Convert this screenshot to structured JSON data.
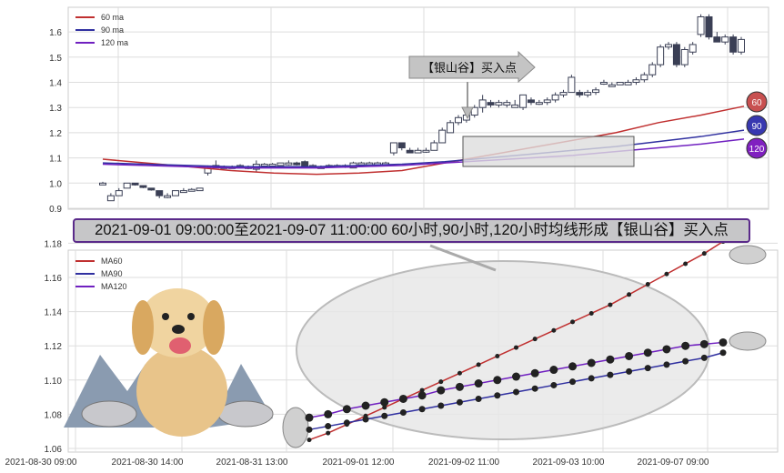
{
  "banner": "2021-09-01 09:00:00至2021-09-07 11:00:00 60小时,90小时,120小时均线形成【银山谷】买入点",
  "colors": {
    "ma60": "#c03030",
    "ma90": "#3030a0",
    "ma120": "#7020c0"
  },
  "chart_data": [
    {
      "type": "candlestick",
      "title": "",
      "ylim": [
        0.9,
        1.7
      ],
      "yticks": [
        "0.9",
        "1.0",
        "1.1",
        "1.2",
        "1.3",
        "1.4",
        "1.5",
        "1.6"
      ],
      "legend": [
        "60 ma",
        "90 ma",
        "120 ma"
      ],
      "legend_position": "top-left",
      "annotation": "【银山谷】买入点",
      "badges": [
        "60",
        "90",
        "120"
      ],
      "candles": [
        [
          1.0,
          1.0,
          1.005,
          0.995
        ],
        [
          0.93,
          0.95,
          0.96,
          0.93
        ],
        [
          0.95,
          0.97,
          0.98,
          0.95
        ],
        [
          0.98,
          1.0,
          1.0,
          0.98
        ],
        [
          1.0,
          0.995,
          1.0,
          0.99
        ],
        [
          0.99,
          0.985,
          0.99,
          0.98
        ],
        [
          0.98,
          0.975,
          0.98,
          0.97
        ],
        [
          0.97,
          0.95,
          0.97,
          0.94
        ],
        [
          0.95,
          0.95,
          0.96,
          0.94
        ],
        [
          0.95,
          0.97,
          0.97,
          0.95
        ],
        [
          0.97,
          0.97,
          0.98,
          0.97
        ],
        [
          0.97,
          0.975,
          0.98,
          0.97
        ],
        [
          0.97,
          0.98,
          0.98,
          0.97
        ],
        [
          1.04,
          1.06,
          1.07,
          1.03
        ],
        [
          1.06,
          1.07,
          1.09,
          1.06
        ],
        [
          1.065,
          1.06,
          1.07,
          1.06
        ],
        [
          1.06,
          1.065,
          1.07,
          1.06
        ],
        [
          1.06,
          1.07,
          1.075,
          1.06
        ],
        [
          1.06,
          1.065,
          1.07,
          1.055
        ],
        [
          1.055,
          1.075,
          1.09,
          1.045
        ],
        [
          1.07,
          1.075,
          1.08,
          1.07
        ],
        [
          1.07,
          1.075,
          1.08,
          1.07
        ],
        [
          1.07,
          1.08,
          1.08,
          1.07
        ],
        [
          1.075,
          1.08,
          1.09,
          1.07
        ],
        [
          1.08,
          1.075,
          1.085,
          1.07
        ],
        [
          1.085,
          1.065,
          1.09,
          1.06
        ],
        [
          1.065,
          1.07,
          1.075,
          1.06
        ],
        [
          1.06,
          1.065,
          1.07,
          1.06
        ],
        [
          1.065,
          1.07,
          1.075,
          1.06
        ],
        [
          1.07,
          1.07,
          1.075,
          1.065
        ],
        [
          1.065,
          1.07,
          1.075,
          1.06
        ],
        [
          1.06,
          1.08,
          1.085,
          1.06
        ],
        [
          1.075,
          1.08,
          1.085,
          1.07
        ],
        [
          1.08,
          1.08,
          1.085,
          1.075
        ],
        [
          1.075,
          1.08,
          1.085,
          1.075
        ],
        [
          1.08,
          1.08,
          1.085,
          1.075
        ],
        [
          1.12,
          1.16,
          1.16,
          1.11
        ],
        [
          1.16,
          1.14,
          1.16,
          1.13
        ],
        [
          1.13,
          1.12,
          1.14,
          1.12
        ],
        [
          1.12,
          1.13,
          1.14,
          1.12
        ],
        [
          1.13,
          1.13,
          1.14,
          1.12
        ],
        [
          1.13,
          1.16,
          1.17,
          1.13
        ],
        [
          1.16,
          1.21,
          1.22,
          1.16
        ],
        [
          1.2,
          1.24,
          1.25,
          1.2
        ],
        [
          1.24,
          1.26,
          1.27,
          1.23
        ],
        [
          1.25,
          1.27,
          1.28,
          1.24
        ],
        [
          1.27,
          1.3,
          1.31,
          1.26
        ],
        [
          1.3,
          1.33,
          1.35,
          1.28
        ],
        [
          1.32,
          1.31,
          1.33,
          1.3
        ],
        [
          1.31,
          1.32,
          1.33,
          1.3
        ],
        [
          1.31,
          1.32,
          1.33,
          1.3
        ],
        [
          1.3,
          1.31,
          1.33,
          1.3
        ],
        [
          1.3,
          1.35,
          1.35,
          1.29
        ],
        [
          1.33,
          1.32,
          1.34,
          1.31
        ],
        [
          1.32,
          1.32,
          1.33,
          1.31
        ],
        [
          1.32,
          1.33,
          1.34,
          1.31
        ],
        [
          1.33,
          1.35,
          1.36,
          1.32
        ],
        [
          1.35,
          1.36,
          1.37,
          1.34
        ],
        [
          1.36,
          1.42,
          1.43,
          1.36
        ],
        [
          1.36,
          1.35,
          1.37,
          1.34
        ],
        [
          1.35,
          1.36,
          1.37,
          1.34
        ],
        [
          1.36,
          1.37,
          1.38,
          1.35
        ],
        [
          1.4,
          1.4,
          1.41,
          1.39
        ],
        [
          1.39,
          1.39,
          1.4,
          1.39
        ],
        [
          1.39,
          1.4,
          1.4,
          1.39
        ],
        [
          1.39,
          1.4,
          1.41,
          1.39
        ],
        [
          1.4,
          1.41,
          1.42,
          1.39
        ],
        [
          1.41,
          1.43,
          1.44,
          1.4
        ],
        [
          1.43,
          1.47,
          1.48,
          1.42
        ],
        [
          1.47,
          1.54,
          1.55,
          1.46
        ],
        [
          1.54,
          1.55,
          1.56,
          1.53
        ],
        [
          1.55,
          1.47,
          1.56,
          1.46
        ],
        [
          1.47,
          1.53,
          1.54,
          1.46
        ],
        [
          1.52,
          1.55,
          1.56,
          1.51
        ],
        [
          1.59,
          1.66,
          1.67,
          1.58
        ],
        [
          1.66,
          1.58,
          1.67,
          1.57
        ],
        [
          1.58,
          1.56,
          1.6,
          1.56
        ],
        [
          1.56,
          1.58,
          1.59,
          1.55
        ],
        [
          1.58,
          1.52,
          1.59,
          1.51
        ],
        [
          1.52,
          1.57,
          1.58,
          1.51
        ]
      ],
      "ma60": [
        1.095,
        1.08,
        1.065,
        1.05,
        1.04,
        1.035,
        1.04,
        1.05,
        1.08,
        1.11,
        1.14,
        1.17,
        1.2,
        1.24,
        1.27,
        1.305
      ],
      "ma90": [
        1.08,
        1.075,
        1.07,
        1.065,
        1.065,
        1.065,
        1.07,
        1.075,
        1.085,
        1.1,
        1.115,
        1.13,
        1.145,
        1.165,
        1.185,
        1.21
      ],
      "ma120": [
        1.075,
        1.07,
        1.065,
        1.06,
        1.06,
        1.06,
        1.065,
        1.07,
        1.08,
        1.09,
        1.1,
        1.11,
        1.125,
        1.14,
        1.155,
        1.175
      ]
    },
    {
      "type": "line",
      "ylim": [
        1.06,
        1.19
      ],
      "yticks": [
        "1.06",
        "1.08",
        "1.10",
        "1.12",
        "1.14",
        "1.16",
        "1.18"
      ],
      "xticks": [
        "2021-08-30 09:00",
        "2021-08-30 14:00",
        "2021-08-31 13:00",
        "2021-09-01 12:00",
        "2021-09-02 11:00",
        "2021-09-03 10:00",
        "2021-09-07 09:00"
      ],
      "legend": [
        "MA60",
        "MA90",
        "MA120"
      ],
      "legend_position": "top-left",
      "series": [
        {
          "name": "MA60",
          "values": [
            1.065,
            1.069,
            1.074,
            1.079,
            1.084,
            1.089,
            1.094,
            1.099,
            1.104,
            1.109,
            1.114,
            1.119,
            1.124,
            1.129,
            1.134,
            1.139,
            1.144,
            1.15,
            1.156,
            1.162,
            1.168,
            1.174,
            1.181
          ]
        },
        {
          "name": "MA90",
          "values": [
            1.071,
            1.073,
            1.075,
            1.077,
            1.079,
            1.081,
            1.083,
            1.085,
            1.087,
            1.089,
            1.091,
            1.093,
            1.095,
            1.097,
            1.099,
            1.101,
            1.103,
            1.105,
            1.107,
            1.109,
            1.111,
            1.113,
            1.116
          ]
        },
        {
          "name": "MA120",
          "values": [
            1.078,
            1.08,
            1.083,
            1.085,
            1.087,
            1.089,
            1.091,
            1.094,
            1.096,
            1.098,
            1.1,
            1.102,
            1.104,
            1.106,
            1.108,
            1.11,
            1.112,
            1.114,
            1.116,
            1.118,
            1.12,
            1.121,
            1.122
          ]
        }
      ]
    }
  ]
}
